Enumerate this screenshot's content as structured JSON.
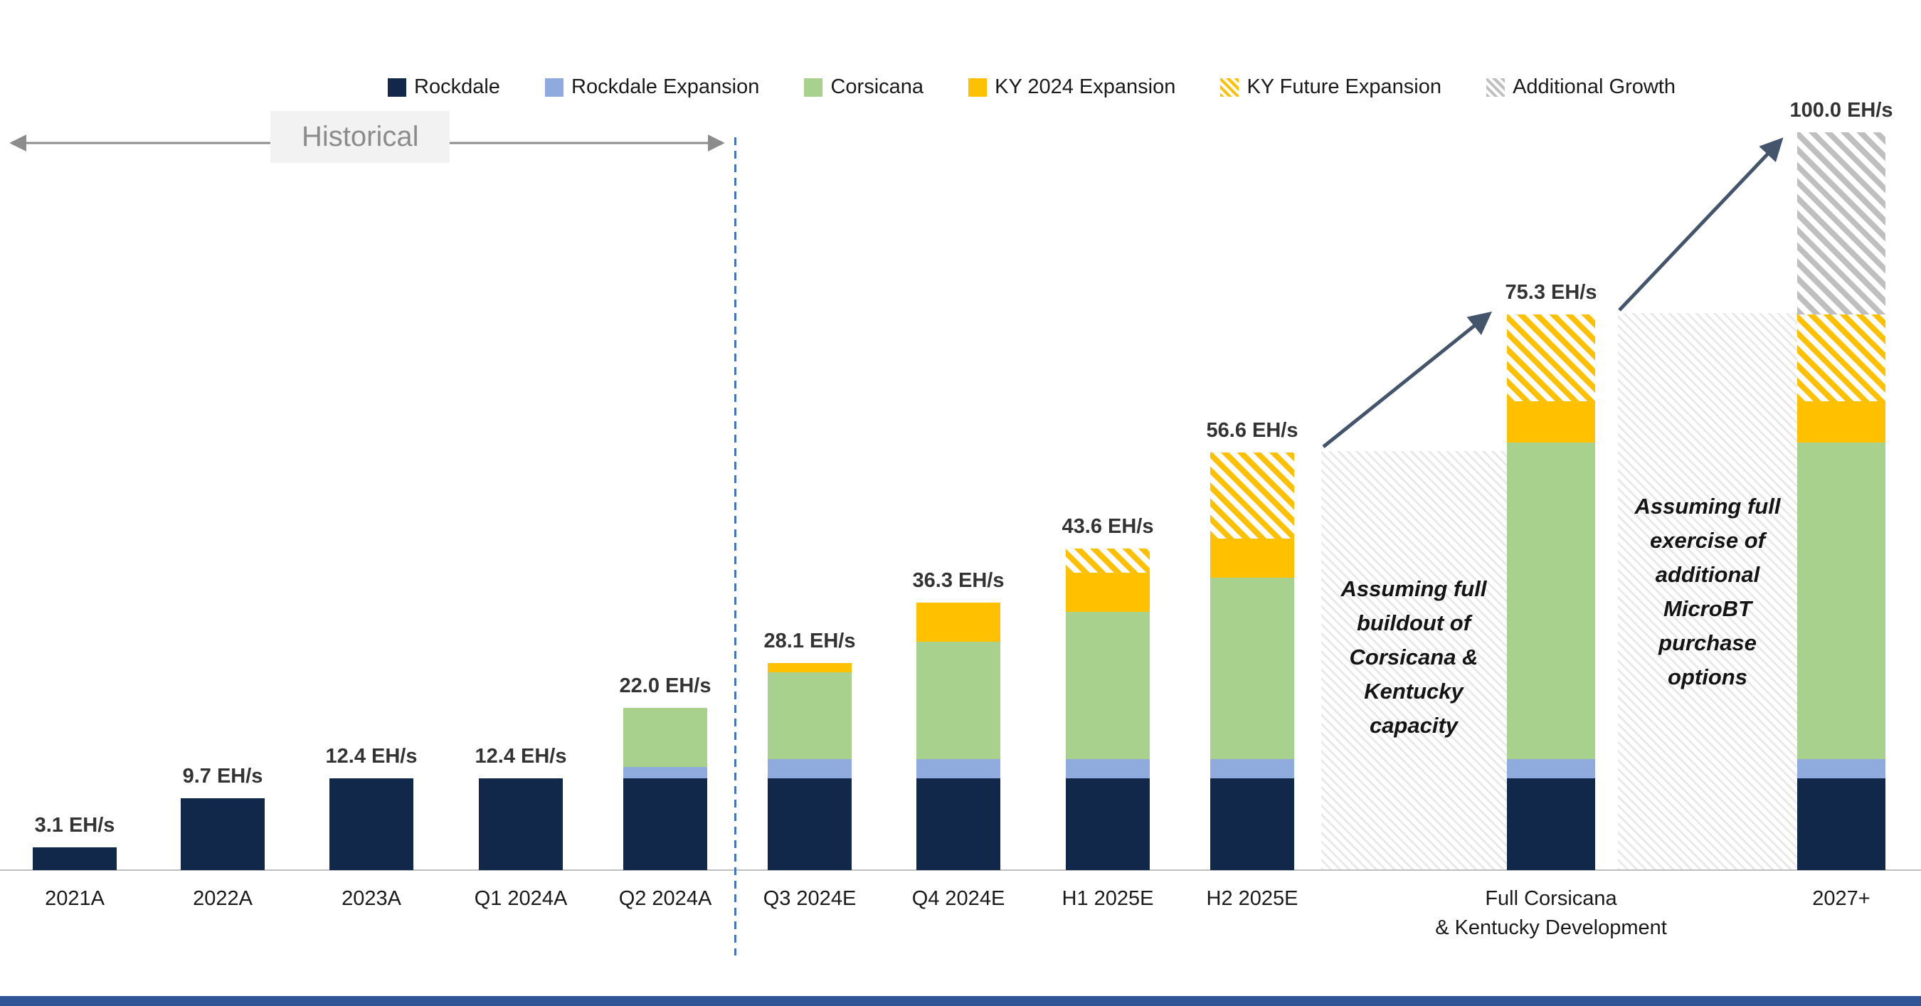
{
  "historical": {
    "label": "Historical"
  },
  "annotations": {
    "buildout": "Assuming full\nbuildout of\nCorsicana &\nKentucky\ncapacity",
    "microbt": "Assuming full\nexercise of\nadditional\nMicroBT\npurchase\noptions"
  },
  "colors": {
    "arrow": "#44546A",
    "historical_arrow": "#8C8C8C",
    "divider": "#4472C4",
    "axis": "#BFBFBF",
    "bottom_bar": "#2F5597",
    "hatch_background": "#E9E9E9"
  },
  "chart_data": {
    "type": "bar",
    "stacked": true,
    "unit": "EH/s",
    "ylim": [
      0,
      100
    ],
    "grid": false,
    "legend_position": "top",
    "categories": [
      "2021A",
      "2022A",
      "2023A",
      "Q1 2024A",
      "Q2 2024A",
      "Q3 2024E",
      "Q4 2024E",
      "H1 2025E",
      "H2 2025E",
      "Full Corsicana\n& Kentucky Development",
      "2027+"
    ],
    "series": [
      {
        "name": "Rockdale",
        "color": "#12284B",
        "pattern": "solid",
        "values": [
          3.1,
          9.7,
          12.4,
          12.4,
          12.4,
          12.4,
          12.4,
          12.4,
          12.4,
          12.4,
          12.4
        ]
      },
      {
        "name": "Rockdale Expansion",
        "color": "#8FAADC",
        "pattern": "solid",
        "values": [
          0,
          0,
          0,
          0,
          1.6,
          2.6,
          2.6,
          2.6,
          2.6,
          2.6,
          2.6
        ]
      },
      {
        "name": "Corsicana",
        "color": "#A9D18E",
        "pattern": "solid",
        "values": [
          0,
          0,
          0,
          0,
          8.0,
          11.8,
          16.0,
          20.0,
          24.6,
          43.0,
          43.0
        ]
      },
      {
        "name": "KY 2024 Expansion",
        "color": "#FFC000",
        "pattern": "solid",
        "values": [
          0,
          0,
          0,
          0,
          0,
          1.3,
          5.3,
          5.3,
          5.3,
          5.6,
          5.6
        ]
      },
      {
        "name": "KY Future Expansion",
        "color": "#FFC000",
        "pattern": "hatch",
        "values": [
          0,
          0,
          0,
          0,
          0,
          0,
          0,
          3.3,
          11.7,
          11.7,
          11.7
        ]
      },
      {
        "name": "Additional Growth",
        "color": "#BFBFBF",
        "pattern": "hatch",
        "values": [
          0,
          0,
          0,
          0,
          0,
          0,
          0,
          0,
          0,
          0,
          24.7
        ]
      }
    ],
    "totals": [
      "3.1 EH/s",
      "9.7 EH/s",
      "12.4 EH/s",
      "12.4 EH/s",
      "22.0 EH/s",
      "28.1 EH/s",
      "36.3 EH/s",
      "43.6 EH/s",
      "56.6 EH/s",
      "75.3 EH/s",
      "100.0 EH/s"
    ]
  }
}
